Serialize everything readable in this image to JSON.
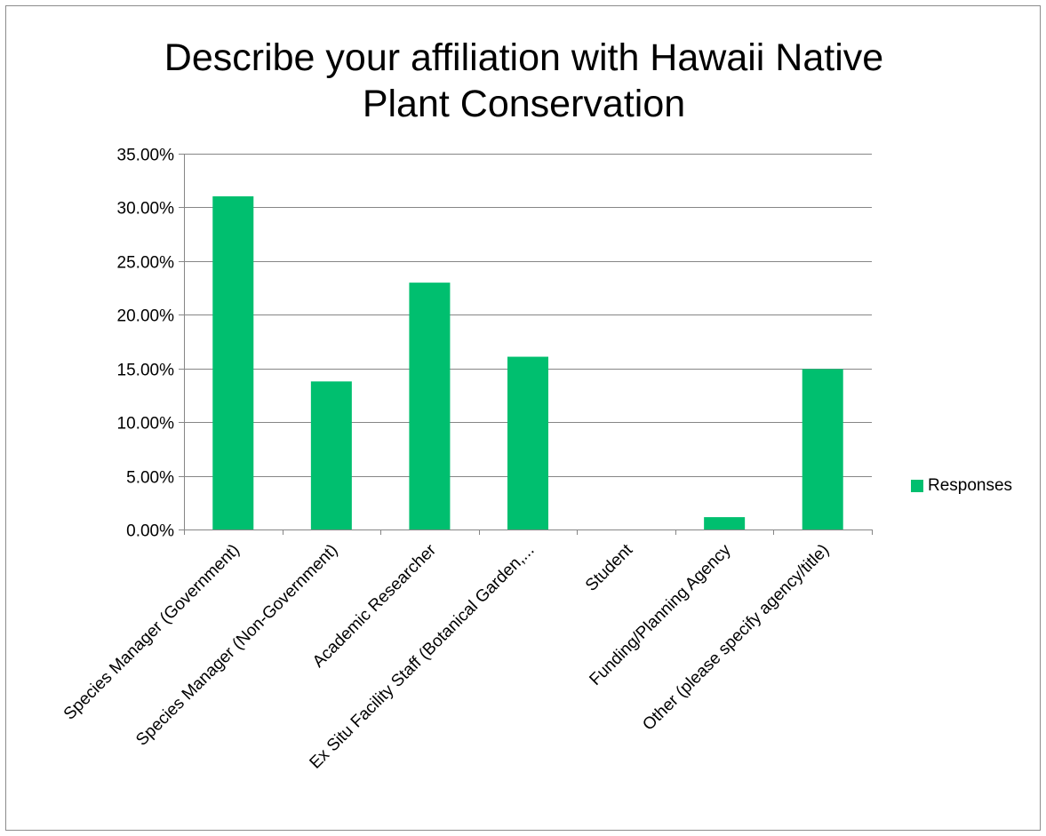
{
  "chart_data": {
    "type": "bar",
    "title_line1": "Describe your affiliation with Hawaii Native",
    "title_line2": "Plant Conservation",
    "xlabel": "",
    "ylabel": "",
    "categories": [
      "Species Manager (Government)",
      "Species Manager (Non-Government)",
      "Academic Researcher",
      "Ex Situ Facility Staff (Botanical Garden,...",
      "Student",
      "Funding/Planning Agency",
      "Other (please specify agency/title)"
    ],
    "series": [
      {
        "name": "Responses",
        "values": [
          0.3103,
          0.1379,
          0.2299,
          0.1609,
          0.0,
          0.0115,
          0.1494
        ],
        "color": "#00bf6f"
      }
    ],
    "ylim": [
      0,
      0.35
    ],
    "yticks": [
      0,
      0.05,
      0.1,
      0.15,
      0.2,
      0.25,
      0.3,
      0.35
    ],
    "ytick_labels": [
      "0.00%",
      "5.00%",
      "10.00%",
      "15.00%",
      "20.00%",
      "25.00%",
      "30.00%",
      "35.00%"
    ],
    "grid": true,
    "legend_position": "right",
    "colors": {
      "gridline": "#868686",
      "axis": "#868686"
    }
  }
}
